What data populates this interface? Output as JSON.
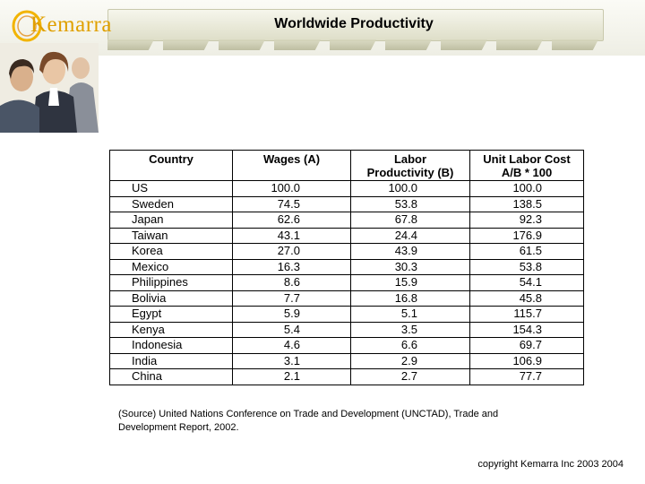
{
  "header": {
    "logo_text": "Kemarra",
    "title": "Worldwide Productivity"
  },
  "table": {
    "headers": [
      "Country",
      "Wages (A)",
      "Labor\nProductivity (B)",
      "Unit Labor Cost\nA/B * 100"
    ],
    "rows": [
      {
        "country": "US",
        "wages": "100.0",
        "productivity": "100.0",
        "ulc": "100.0"
      },
      {
        "country": "Sweden",
        "wages": "74.5",
        "productivity": "53.8",
        "ulc": "138.5"
      },
      {
        "country": "Japan",
        "wages": "62.6",
        "productivity": "67.8",
        "ulc": "92.3"
      },
      {
        "country": "Taiwan",
        "wages": "43.1",
        "productivity": "24.4",
        "ulc": "176.9"
      },
      {
        "country": "Korea",
        "wages": "27.0",
        "productivity": "43.9",
        "ulc": "61.5"
      },
      {
        "country": "Mexico",
        "wages": "16.3",
        "productivity": "30.3",
        "ulc": "53.8"
      },
      {
        "country": "Philippines",
        "wages": "8.6",
        "productivity": "15.9",
        "ulc": "54.1"
      },
      {
        "country": "Bolivia",
        "wages": "7.7",
        "productivity": "16.8",
        "ulc": "45.8"
      },
      {
        "country": "Egypt",
        "wages": "5.9",
        "productivity": "5.1",
        "ulc": "115.7"
      },
      {
        "country": "Kenya",
        "wages": "5.4",
        "productivity": "3.5",
        "ulc": "154.3"
      },
      {
        "country": "Indonesia",
        "wages": "4.6",
        "productivity": "6.6",
        "ulc": "69.7"
      },
      {
        "country": "India",
        "wages": "3.1",
        "productivity": "2.9",
        "ulc": "106.9"
      },
      {
        "country": "China",
        "wages": "2.1",
        "productivity": "2.7",
        "ulc": "77.7"
      }
    ]
  },
  "source_note": "(Source) United Nations Conference on Trade and Development (UNCTAD), Trade and Development Report, 2002.",
  "copyright": "copyright Kemarra Inc 2003 2004",
  "colors": {
    "logo": "#e0a000",
    "banner": "#eeeee4"
  }
}
